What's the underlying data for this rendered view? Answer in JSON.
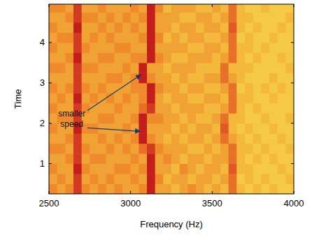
{
  "chart_data": {
    "type": "heatmap",
    "xlabel": "Frequency (Hz)",
    "ylabel": "Time",
    "xlim": [
      2500,
      4000
    ],
    "xticks": [
      2500,
      3000,
      3500,
      4000
    ],
    "ylim": [
      0.25,
      4.95
    ],
    "yticks": [
      1,
      2,
      3,
      4
    ],
    "zlim": [
      0,
      9
    ],
    "x": [
      2525,
      2575,
      2625,
      2675,
      2725,
      2775,
      2825,
      2875,
      2925,
      2975,
      3025,
      3075,
      3125,
      3175,
      3225,
      3275,
      3325,
      3375,
      3425,
      3475,
      3525,
      3575,
      3625,
      3675,
      3725,
      3775,
      3825,
      3875,
      3925,
      3975
    ],
    "y": [
      0.375,
      0.625,
      0.875,
      1.125,
      1.375,
      1.625,
      1.875,
      2.125,
      2.375,
      2.625,
      2.875,
      3.125,
      3.375,
      3.625,
      3.875,
      4.125,
      4.375,
      4.625,
      4.875
    ],
    "cells": [
      [
        5,
        4,
        5,
        8,
        5,
        4,
        5,
        4,
        5,
        4,
        4,
        5,
        9,
        4,
        4,
        3,
        4,
        5,
        4,
        3,
        4,
        3,
        6,
        3,
        2,
        3,
        2,
        3,
        2,
        2
      ],
      [
        4,
        5,
        4,
        8,
        4,
        5,
        4,
        5,
        4,
        4,
        5,
        4,
        9,
        5,
        3,
        4,
        4,
        3,
        4,
        4,
        3,
        4,
        6,
        2,
        3,
        2,
        3,
        2,
        2,
        3
      ],
      [
        5,
        4,
        4,
        9,
        5,
        4,
        4,
        4,
        5,
        5,
        4,
        5,
        9,
        4,
        4,
        3,
        5,
        4,
        3,
        4,
        4,
        3,
        7,
        3,
        3,
        2,
        2,
        2,
        3,
        2
      ],
      [
        4,
        4,
        5,
        8,
        4,
        5,
        5,
        4,
        4,
        4,
        5,
        4,
        9,
        4,
        5,
        4,
        3,
        4,
        4,
        3,
        4,
        4,
        6,
        3,
        2,
        3,
        2,
        3,
        2,
        2
      ],
      [
        5,
        5,
        4,
        8,
        5,
        4,
        4,
        5,
        4,
        5,
        4,
        6,
        8,
        5,
        4,
        4,
        4,
        3,
        3,
        4,
        3,
        4,
        6,
        3,
        3,
        2,
        3,
        2,
        2,
        3
      ],
      [
        4,
        4,
        5,
        8,
        4,
        4,
        5,
        4,
        5,
        4,
        5,
        9,
        5,
        4,
        3,
        4,
        3,
        4,
        4,
        3,
        4,
        6,
        4,
        3,
        2,
        3,
        2,
        2,
        3,
        2
      ],
      [
        5,
        4,
        4,
        9,
        5,
        5,
        4,
        4,
        4,
        5,
        4,
        9,
        4,
        4,
        4,
        3,
        4,
        3,
        4,
        4,
        3,
        7,
        3,
        2,
        3,
        2,
        2,
        3,
        2,
        2
      ],
      [
        4,
        5,
        5,
        8,
        4,
        4,
        5,
        5,
        4,
        4,
        5,
        9,
        5,
        5,
        4,
        4,
        3,
        4,
        3,
        3,
        4,
        6,
        3,
        3,
        2,
        2,
        3,
        2,
        2,
        3
      ],
      [
        5,
        4,
        4,
        8,
        5,
        4,
        4,
        4,
        5,
        4,
        4,
        6,
        8,
        4,
        4,
        3,
        4,
        4,
        4,
        3,
        3,
        4,
        6,
        3,
        2,
        3,
        2,
        2,
        2,
        2
      ],
      [
        4,
        5,
        4,
        9,
        4,
        5,
        4,
        5,
        4,
        5,
        4,
        5,
        9,
        4,
        3,
        4,
        4,
        3,
        3,
        4,
        4,
        3,
        6,
        3,
        3,
        2,
        2,
        3,
        2,
        2
      ],
      [
        5,
        4,
        5,
        8,
        5,
        4,
        5,
        4,
        4,
        4,
        5,
        5,
        9,
        5,
        4,
        4,
        3,
        4,
        4,
        3,
        3,
        4,
        6,
        2,
        3,
        2,
        3,
        2,
        3,
        2
      ],
      [
        4,
        4,
        4,
        8,
        4,
        4,
        4,
        5,
        5,
        4,
        5,
        9,
        5,
        4,
        4,
        3,
        4,
        3,
        3,
        4,
        4,
        6,
        4,
        3,
        2,
        2,
        2,
        3,
        2,
        2
      ],
      [
        5,
        5,
        4,
        8,
        5,
        5,
        4,
        4,
        4,
        5,
        4,
        9,
        4,
        4,
        3,
        4,
        4,
        4,
        3,
        3,
        3,
        6,
        3,
        3,
        3,
        2,
        2,
        2,
        2,
        3
      ],
      [
        4,
        4,
        5,
        9,
        4,
        4,
        5,
        5,
        4,
        4,
        5,
        5,
        9,
        5,
        4,
        3,
        3,
        4,
        4,
        4,
        3,
        4,
        6,
        3,
        2,
        3,
        2,
        2,
        3,
        2
      ],
      [
        5,
        4,
        4,
        8,
        5,
        4,
        4,
        4,
        5,
        5,
        4,
        4,
        9,
        4,
        4,
        4,
        4,
        3,
        3,
        4,
        4,
        3,
        6,
        3,
        3,
        2,
        3,
        2,
        2,
        2
      ],
      [
        4,
        5,
        5,
        8,
        4,
        5,
        4,
        5,
        4,
        4,
        4,
        5,
        9,
        5,
        3,
        4,
        3,
        4,
        4,
        3,
        3,
        4,
        6,
        2,
        3,
        2,
        2,
        3,
        2,
        2
      ],
      [
        5,
        4,
        4,
        9,
        4,
        4,
        5,
        4,
        5,
        4,
        5,
        4,
        9,
        4,
        4,
        3,
        4,
        4,
        3,
        4,
        4,
        3,
        7,
        3,
        2,
        3,
        2,
        2,
        3,
        2
      ],
      [
        4,
        4,
        5,
        8,
        5,
        5,
        4,
        5,
        4,
        5,
        4,
        5,
        9,
        4,
        4,
        4,
        3,
        3,
        4,
        4,
        3,
        4,
        6,
        3,
        3,
        2,
        2,
        2,
        2,
        3
      ],
      [
        5,
        5,
        4,
        8,
        4,
        4,
        5,
        4,
        4,
        4,
        5,
        4,
        9,
        5,
        3,
        4,
        4,
        4,
        3,
        3,
        4,
        3,
        6,
        3,
        2,
        2,
        3,
        2,
        2,
        2
      ]
    ],
    "annotations": [
      {
        "text": "smaller speed",
        "x": 2640,
        "y": 2.1,
        "arrows": [
          {
            "x": 3080,
            "y": 3.2
          },
          {
            "x": 3075,
            "y": 1.8
          }
        ]
      }
    ]
  }
}
